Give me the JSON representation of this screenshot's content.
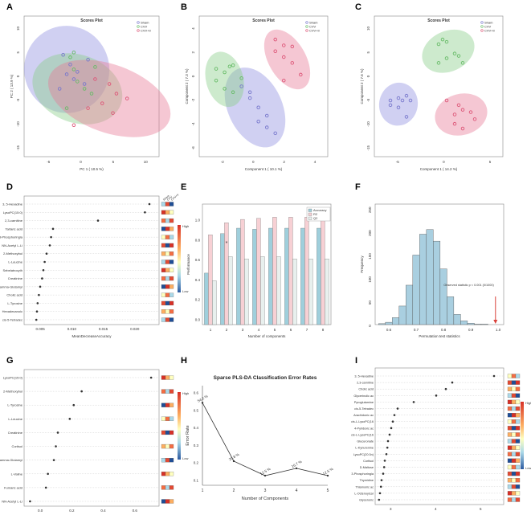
{
  "chart_data": [
    {
      "panel": "A",
      "type": "scatter",
      "title": "Scores Plot",
      "xlabel": "PC 1 ( 10.5 %)",
      "ylabel": "PC 2 ( 13.9 %)",
      "legend": [
        "Sham",
        "CVV",
        "CVV+Ir"
      ],
      "legend_position": "top-right",
      "xticks": [
        "-5",
        "0",
        "5",
        "10"
      ],
      "yticks": [
        "10",
        "5",
        "0",
        "-5",
        "-10",
        "-15"
      ],
      "xlim": [
        -8,
        11
      ],
      "ylim": [
        -16,
        13
      ],
      "series": [
        {
          "name": "Sham",
          "color": "#7777cc",
          "points": [
            [
              -2.5,
              5
            ],
            [
              -1.5,
              3
            ],
            [
              -0.5,
              1.5
            ],
            [
              -3,
              -2
            ],
            [
              -1,
              0
            ],
            [
              0.5,
              -1
            ],
            [
              1,
              4
            ],
            [
              -2,
              1
            ]
          ]
        },
        {
          "name": "CVV",
          "color": "#66bb66",
          "points": [
            [
              -1,
              5.5
            ],
            [
              -1.5,
              4.5
            ],
            [
              -1,
              2
            ],
            [
              2,
              2.5
            ],
            [
              -0.5,
              -0.5
            ],
            [
              0.5,
              -2
            ],
            [
              1.5,
              -3
            ],
            [
              -2,
              -6
            ]
          ]
        },
        {
          "name": "CVV+Ir",
          "color": "#dd5577",
          "points": [
            [
              2,
              0
            ],
            [
              4,
              -1
            ],
            [
              5,
              -3
            ],
            [
              6.5,
              -4
            ],
            [
              3,
              -5
            ],
            [
              4.5,
              -7
            ],
            [
              1,
              -6
            ],
            [
              -1,
              -9.5
            ]
          ]
        }
      ]
    },
    {
      "panel": "B",
      "type": "scatter",
      "title": "Scores Plot",
      "xlabel": "Component 1 ( 10.1 %)",
      "ylabel": "Component 2 ( 7.3 %)",
      "legend": [
        "Sham",
        "CVV",
        "CVV+Ir"
      ],
      "legend_position": "top-right",
      "xticks": [
        "-2",
        "0",
        "2",
        "4"
      ],
      "yticks": [
        "4",
        "2",
        "0",
        "-2",
        "-4",
        "-6"
      ],
      "xlim": [
        -3,
        4.6
      ],
      "ylim": [
        -7,
        5
      ],
      "series": [
        {
          "name": "Sham",
          "color": "#7777cc",
          "points": [
            [
              0,
              -2
            ],
            [
              0.5,
              -2.8
            ],
            [
              1,
              -4.5
            ],
            [
              1.5,
              -5
            ],
            [
              0.5,
              -4
            ],
            [
              1,
              -3.5
            ],
            [
              0,
              -1.5
            ],
            [
              -0.5,
              -1
            ]
          ]
        },
        {
          "name": "CVV",
          "color": "#66bb66",
          "points": [
            [
              -2,
              0.5
            ],
            [
              -1.5,
              0.2
            ],
            [
              -1.2,
              0.7
            ],
            [
              -1,
              0.8
            ],
            [
              -0.5,
              -0.3
            ],
            [
              -2,
              -0.5
            ],
            [
              -1.5,
              -1.2
            ],
            [
              -1,
              -1.5
            ]
          ]
        },
        {
          "name": "CVV+Ir",
          "color": "#dd5577",
          "points": [
            [
              1.5,
              3
            ],
            [
              2,
              2.5
            ],
            [
              1.5,
              2
            ],
            [
              2.5,
              2.4
            ],
            [
              2,
              1.5
            ],
            [
              2.5,
              1
            ],
            [
              3,
              0
            ],
            [
              2,
              -0.5
            ]
          ]
        }
      ]
    },
    {
      "panel": "C",
      "type": "scatter",
      "title": "Scores Plot",
      "xlabel": "Component 1 ( 14.2 %)",
      "ylabel": "Component 2 ( 7.6 %)",
      "legend": [
        "Sham",
        "CVV",
        "CVV+Ir"
      ],
      "legend_position": "top-right",
      "xticks": [
        "-5",
        "0",
        "5"
      ],
      "yticks": [
        "10",
        "5",
        "0",
        "-5",
        "-10",
        "-15"
      ],
      "xlim": [
        -8,
        8
      ],
      "ylim": [
        -17,
        13
      ],
      "series": [
        {
          "name": "Sham",
          "color": "#7777cc",
          "points": [
            [
              -6,
              -5
            ],
            [
              -5,
              -4.5
            ],
            [
              -4.5,
              -5
            ],
            [
              -4,
              -4
            ],
            [
              -6,
              -6
            ],
            [
              -5,
              -6.5
            ],
            [
              -3.5,
              -5
            ],
            [
              -4,
              -8.5
            ]
          ]
        },
        {
          "name": "CVV",
          "color": "#66bb66",
          "points": [
            [
              0,
              7
            ],
            [
              0.5,
              8
            ],
            [
              1,
              7.5
            ],
            [
              2,
              5
            ],
            [
              2.5,
              4.5
            ],
            [
              3,
              3
            ],
            [
              1,
              4
            ],
            [
              0,
              3
            ]
          ]
        },
        {
          "name": "CVV+Ir",
          "color": "#dd5577",
          "points": [
            [
              1,
              -5
            ],
            [
              2.5,
              -6
            ],
            [
              3,
              -7
            ],
            [
              4,
              -7.5
            ],
            [
              2,
              -8
            ],
            [
              4.5,
              -9
            ],
            [
              2,
              -10
            ],
            [
              3,
              -11
            ]
          ]
        }
      ]
    },
    {
      "panel": "D",
      "type": "dotplot",
      "xlabel": "MeanDecreaseAccuracy",
      "xticks": [
        "0.005",
        "0.010",
        "0.015",
        "0.020"
      ],
      "xlim": [
        0.002,
        0.023
      ],
      "heat_label_high": "High",
      "heat_label_low": "Low",
      "group_labels": [
        "Sham",
        "CVV",
        "CVV+Ir"
      ],
      "features": [
        "3, 5-Hexadine",
        "LysoPC(15:0)",
        "2,3-carnitine",
        "Tartaric acid",
        "3-Phosphoringia",
        "NN-Acetyl L-Li",
        "2-Methoxybul",
        "L-Leucine",
        "Sebelatrocyth",
        "Creatinine",
        "Gamma-Glutamyl",
        "Cholic acid",
        "L-Tyrosine",
        "Hexadecanoic",
        "cis-5-Tetradec"
      ],
      "values": [
        0.0215,
        0.0208,
        0.0135,
        0.0065,
        0.0062,
        0.006,
        0.0055,
        0.0052,
        0.005,
        0.0048,
        0.0045,
        0.0043,
        0.0041,
        0.004,
        0.0039
      ]
    },
    {
      "panel": "E",
      "type": "bar",
      "ylabel": "Performance",
      "xlabel": "Number of components",
      "categories": [
        "1",
        "2",
        "3",
        "4",
        "5",
        "6",
        "7",
        "8"
      ],
      "yticks": [
        "0.0",
        "0.2",
        "0.4",
        "0.6",
        "0.8",
        "1.0"
      ],
      "ylim": [
        0,
        1.1
      ],
      "annotation": "*",
      "series": [
        {
          "name": "Accuracy",
          "color": "#9fcfdc",
          "values": [
            0.47,
            0.83,
            0.88,
            0.87,
            0.88,
            0.88,
            0.88,
            0.88
          ]
        },
        {
          "name": "R2",
          "color": "#f7d0d4",
          "values": [
            0.82,
            0.93,
            0.96,
            0.97,
            0.98,
            0.98,
            0.98,
            0.98
          ]
        },
        {
          "name": "Q2",
          "color": "#e8f0ee",
          "values": [
            0.4,
            0.62,
            0.6,
            0.62,
            0.62,
            0.6,
            0.6,
            0.6
          ]
        }
      ]
    },
    {
      "panel": "F",
      "type": "histogram",
      "xlabel": "Permutation test statistics",
      "ylabel": "Frequency",
      "xticks": [
        "0.6",
        "0.7",
        "0.8",
        "0.9",
        "1.0"
      ],
      "yticks": [
        "0",
        "50",
        "100",
        "150",
        "200",
        "250"
      ],
      "xlim": [
        0.55,
        1.02
      ],
      "ylim": [
        0,
        260
      ],
      "bin_centers": [
        0.575,
        0.6,
        0.625,
        0.65,
        0.675,
        0.7,
        0.725,
        0.75,
        0.775,
        0.8,
        0.825,
        0.85,
        0.875,
        0.9,
        0.925,
        0.95
      ],
      "counts": [
        2,
        5,
        15,
        40,
        85,
        150,
        195,
        205,
        180,
        120,
        60,
        22,
        8,
        3,
        1,
        1
      ],
      "annotation": "Observed statistic p < 0.001 (0/1000)",
      "observed": 0.99
    },
    {
      "panel": "G",
      "type": "dotplot",
      "xlabel": "Loadings 1",
      "xticks": [
        "0.0",
        "0.2",
        "0.4",
        "0.6"
      ],
      "xlim": [
        -0.02,
        0.66
      ],
      "heat_label_high": "High",
      "heat_label_low": "Low",
      "features": [
        "LysoPC(15:0)",
        "2-Methoxybul",
        "L-Tyrosine",
        "L-Leucine",
        "Creatinine",
        "Cortisol",
        "Gamma-Glutamyl",
        "L-Valine",
        "Fumaric acid",
        "NN-Acetyl L-Li"
      ],
      "values": [
        0.62,
        0.27,
        0.23,
        0.21,
        0.15,
        0.14,
        0.13,
        0.1,
        0.09,
        0.01
      ]
    },
    {
      "panel": "H",
      "type": "line",
      "title": "Sparse PLS-DA Classification Error Rates",
      "xlabel": "Number of Components",
      "ylabel": "Error Rate",
      "x": [
        1,
        2,
        3,
        4,
        5
      ],
      "values": [
        0.542,
        0.208,
        0.125,
        0.167,
        0.125
      ],
      "labels": [
        "54.2 %",
        "20.8 %",
        "12.5 %",
        "16.7 %",
        "12.5 %"
      ],
      "xticks": [
        "1",
        "2",
        "3",
        "4",
        "5"
      ],
      "yticks": [
        "0.1",
        "0.2",
        "0.3",
        "0.4",
        "0.5",
        "0.6"
      ],
      "xlim": [
        1,
        5
      ],
      "ylim": [
        0.07,
        0.64
      ]
    },
    {
      "panel": "I",
      "type": "dotplot",
      "xlabel": "VIP scores",
      "xticks": [
        "3",
        "4",
        "5"
      ],
      "xlim": [
        1.3,
        5.3
      ],
      "heat_label_high": "High",
      "heat_label_low": "Low",
      "features": [
        "3, 5-Hexadine",
        "2,3-carnitine",
        "Cholic acid",
        "Glycerinolic ac",
        "Pyroglutamine",
        "cis-5-Tetradec",
        "Arachidonic ac",
        "cis-L-LysoPC(16",
        "4-Pyridoxic ac",
        "cis-L-LysoPC(16",
        "Glucuronate",
        "L-Kynurenine",
        "LysoPC(20:3n)",
        "Cortisol",
        "D-Maltose",
        "3-Phosphoringia",
        "Thymidine",
        "Thiamonic ac",
        "L-Octenoylcar",
        "Glyceronic"
      ],
      "values": [
        5.0,
        3.7,
        3.5,
        3.2,
        2.5,
        2.0,
        1.9,
        1.85,
        1.8,
        1.75,
        1.7,
        1.68,
        1.65,
        1.6,
        1.58,
        1.55,
        1.5,
        1.48,
        1.45,
        1.42
      ]
    }
  ]
}
